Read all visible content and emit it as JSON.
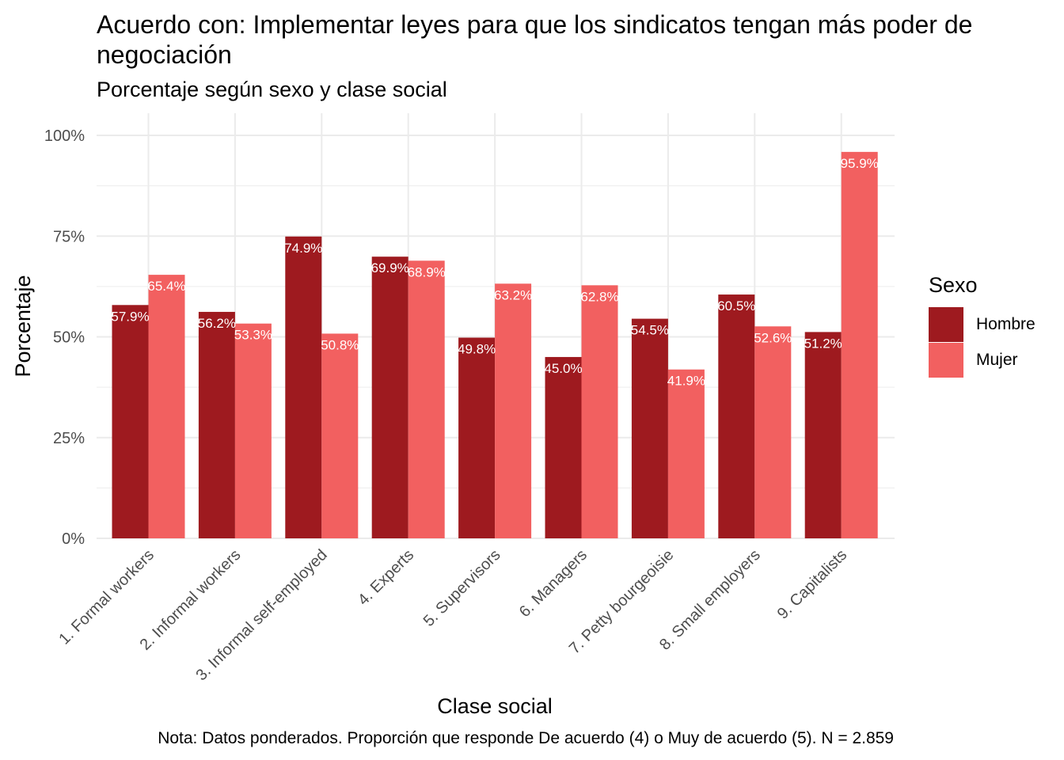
{
  "chart_data": {
    "type": "bar",
    "title": "Acuerdo con: Implementar leyes para que los sindicatos tengan más poder de negociación",
    "subtitle": "Porcentaje según sexo y clase social",
    "xlabel": "Clase social",
    "ylabel": "Porcentaje",
    "caption": "Nota: Datos ponderados. Proporción que responde De acuerdo (4) o Muy de acuerdo (5). N = 2.859",
    "ylim": [
      0,
      100
    ],
    "y_ticks": [
      0,
      25,
      50,
      75,
      100
    ],
    "y_tick_labels": [
      "0%",
      "25%",
      "50%",
      "75%",
      "100%"
    ],
    "grid": true,
    "legend": {
      "title": "Sexo",
      "position": "right"
    },
    "categories": [
      "1. Formal workers",
      "2. Informal workers",
      "3. Informal self-employed",
      "4. Experts",
      "5. Supervisors",
      "6. Managers",
      "7. Petty bourgeoisie",
      "8. Small employers",
      "9. Capitalists"
    ],
    "series": [
      {
        "name": "Hombre",
        "color": "#9E1A1F",
        "values": [
          57.9,
          56.2,
          74.9,
          69.9,
          49.8,
          45.0,
          54.5,
          60.5,
          51.2
        ],
        "labels": [
          "57.9%",
          "56.2%",
          "74.9%",
          "69.9%",
          "49.8%",
          "45.0%",
          "54.5%",
          "60.5%",
          "51.2%"
        ]
      },
      {
        "name": "Mujer",
        "color": "#F26060",
        "values": [
          65.4,
          53.3,
          50.8,
          68.9,
          63.2,
          62.8,
          41.9,
          52.6,
          95.9
        ],
        "labels": [
          "65.4%",
          "53.3%",
          "50.8%",
          "68.9%",
          "63.2%",
          "62.8%",
          "41.9%",
          "52.6%",
          "95.9%"
        ]
      }
    ]
  }
}
